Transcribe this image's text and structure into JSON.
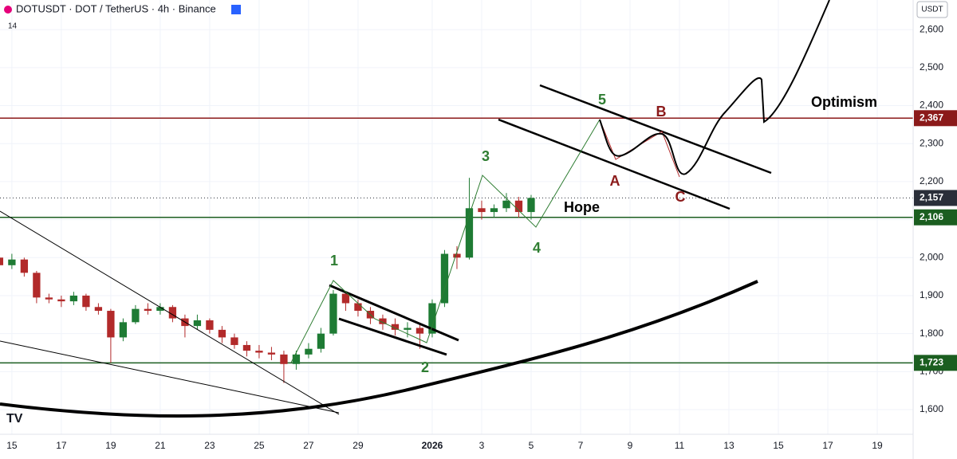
{
  "chart_data": {
    "type": "candlestick",
    "title": "DOTUSDT · DOT / TetherUS · 4h · Binance",
    "indicator": "14",
    "currency": "USDT",
    "x": [
      -0.5,
      0,
      0.5,
      1,
      1.5,
      2,
      2.5,
      3,
      3.5,
      4,
      4.5,
      5,
      5.5,
      6,
      6.5,
      7,
      7.5,
      8,
      8.5,
      9,
      9.5,
      10,
      10.5,
      11,
      11.5,
      12,
      12.5,
      13,
      13.5,
      14,
      14.5,
      15,
      15.5,
      16,
      16.5,
      17,
      17.5,
      18,
      18.5,
      19,
      19.5,
      20,
      20.5,
      21
    ],
    "open": [
      2000,
      1980,
      1995,
      1960,
      1895,
      1890,
      1885,
      1900,
      1870,
      1860,
      1790,
      1830,
      1865,
      1860,
      1870,
      1840,
      1820,
      1835,
      1810,
      1790,
      1770,
      1755,
      1750,
      1745,
      1720,
      1745,
      1760,
      1800,
      1905,
      1880,
      1860,
      1840,
      1825,
      1810,
      1815,
      1800,
      1880,
      2010,
      2000,
      2130,
      2120,
      2130,
      2150,
      2120
    ],
    "high": [
      2010,
      2010,
      2000,
      1965,
      1905,
      1900,
      1910,
      1905,
      1880,
      1865,
      1840,
      1875,
      1880,
      1880,
      1875,
      1850,
      1850,
      1840,
      1820,
      1800,
      1780,
      1770,
      1765,
      1755,
      1755,
      1775,
      1815,
      1915,
      1910,
      1890,
      1870,
      1850,
      1840,
      1830,
      1825,
      1890,
      2020,
      2030,
      2210,
      2150,
      2140,
      2170,
      2160,
      2165
    ],
    "low": [
      1965,
      1970,
      1950,
      1880,
      1880,
      1870,
      1875,
      1860,
      1850,
      1723,
      1780,
      1825,
      1850,
      1850,
      1830,
      1790,
      1810,
      1800,
      1775,
      1760,
      1740,
      1735,
      1730,
      1670,
      1705,
      1735,
      1750,
      1795,
      1860,
      1845,
      1825,
      1810,
      1795,
      1790,
      1760,
      1790,
      1870,
      1970,
      1995,
      2100,
      2105,
      2120,
      2105,
      2100
    ],
    "close": [
      1980,
      1995,
      1960,
      1895,
      1890,
      1885,
      1900,
      1870,
      1860,
      1790,
      1830,
      1865,
      1860,
      1870,
      1840,
      1820,
      1835,
      1810,
      1790,
      1770,
      1755,
      1750,
      1745,
      1720,
      1745,
      1760,
      1800,
      1905,
      1880,
      1860,
      1840,
      1825,
      1810,
      1815,
      1800,
      1880,
      2010,
      2000,
      2130,
      2120,
      2130,
      2150,
      2120,
      2157
    ],
    "up_color": "#1e7b34",
    "down_color": "#b22a2a",
    "xlim": [
      -0.48,
      36.45
    ],
    "ylim": [
      1535,
      2678
    ],
    "xticks": [
      {
        "value": 0,
        "label": "15"
      },
      {
        "value": 2,
        "label": "17"
      },
      {
        "value": 4,
        "label": "19"
      },
      {
        "value": 6,
        "label": "21"
      },
      {
        "value": 8,
        "label": "23"
      },
      {
        "value": 10,
        "label": "25"
      },
      {
        "value": 12,
        "label": "27"
      },
      {
        "value": 14,
        "label": "29"
      },
      {
        "value": 17,
        "label": "2026"
      },
      {
        "value": 19,
        "label": "3"
      },
      {
        "value": 21,
        "label": "5"
      },
      {
        "value": 23,
        "label": "7"
      },
      {
        "value": 25,
        "label": "9"
      },
      {
        "value": 27,
        "label": "11"
      },
      {
        "value": 29,
        "label": "13"
      },
      {
        "value": 31,
        "label": "15"
      },
      {
        "value": 33,
        "label": "17"
      },
      {
        "value": 35,
        "label": "19"
      }
    ],
    "yticks": [
      {
        "value": 1600,
        "label": "1,600"
      },
      {
        "value": 1700,
        "label": "1,700"
      },
      {
        "value": 1800,
        "label": "1,800"
      },
      {
        "value": 1900,
        "label": "1,900"
      },
      {
        "value": 2000,
        "label": "2,000"
      },
      {
        "value": 2100,
        "label": "2,100"
      },
      {
        "value": 2200,
        "label": "2,200"
      },
      {
        "value": 2300,
        "label": "2,300"
      },
      {
        "value": 2400,
        "label": "2,400"
      },
      {
        "value": 2500,
        "label": "2,500"
      },
      {
        "value": 2600,
        "label": "2,600"
      }
    ],
    "levels": [
      {
        "value": 2367,
        "label": "2,367",
        "color": "#8b1a1a"
      },
      {
        "value": 2106,
        "label": "2,106",
        "color": "#1b5e20"
      },
      {
        "value": 1723,
        "label": "1,723",
        "color": "#1b5e20"
      }
    ],
    "last_price": {
      "value": 2157,
      "label": "2,157",
      "color": "#2a2e39"
    },
    "annotations": {
      "w1": "1",
      "w2": "2",
      "w3": "3",
      "w4": "4",
      "w5": "5",
      "a": "A",
      "b": "B",
      "c": "C",
      "hope": "Hope",
      "optimism": "Optimism"
    }
  }
}
